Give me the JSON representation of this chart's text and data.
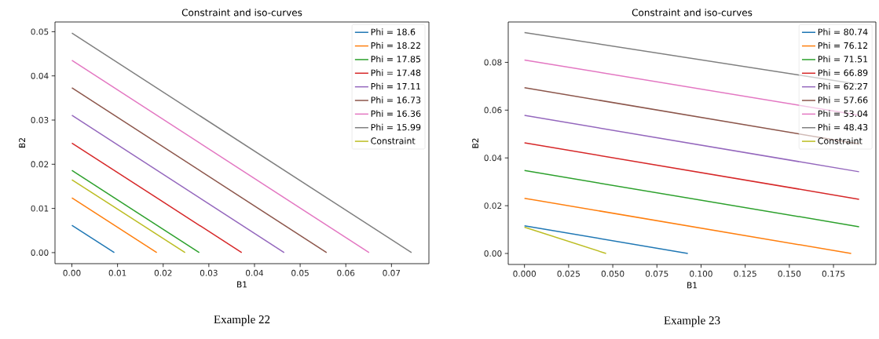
{
  "chart_data": [
    {
      "type": "line",
      "title": "Constraint and iso-curves",
      "xlabel": "B1",
      "ylabel": "B2",
      "legend": "top right",
      "annotations": [
        "Example 22"
      ],
      "xlim": [
        -0.0037,
        0.0782
      ],
      "ylim": [
        -0.0025,
        0.0522
      ],
      "xticks": [
        {
          "value": 0,
          "label": "0.00"
        },
        {
          "value": 0.01,
          "label": "0.01"
        },
        {
          "value": 0.02,
          "label": "0.02"
        },
        {
          "value": 0.03,
          "label": "0.03"
        },
        {
          "value": 0.04,
          "label": "0.04"
        },
        {
          "value": 0.05,
          "label": "0.05"
        },
        {
          "value": 0.06,
          "label": "0.06"
        },
        {
          "value": 0.07,
          "label": "0.07"
        }
      ],
      "yticks": [
        {
          "value": 0,
          "label": "0.00"
        },
        {
          "value": 0.01,
          "label": "0.01"
        },
        {
          "value": 0.02,
          "label": "0.02"
        },
        {
          "value": 0.03,
          "label": "0.03"
        },
        {
          "value": 0.04,
          "label": "0.04"
        },
        {
          "value": 0.05,
          "label": "0.05"
        }
      ],
      "series": [
        {
          "name": "Phi = 18.6",
          "color": "#1f77b4",
          "x": [
            0,
            0.0093
          ],
          "values": [
            0.0062,
            0
          ]
        },
        {
          "name": "Phi = 18.22",
          "color": "#ff7f0e",
          "x": [
            0,
            0.0186
          ],
          "values": [
            0.0124,
            0
          ]
        },
        {
          "name": "Phi = 17.85",
          "color": "#2ca02c",
          "x": [
            0,
            0.0279
          ],
          "values": [
            0.0186,
            0
          ]
        },
        {
          "name": "Phi = 17.48",
          "color": "#d62728",
          "x": [
            0,
            0.0372
          ],
          "values": [
            0.0248,
            0
          ]
        },
        {
          "name": "Phi = 17.11",
          "color": "#9467bd",
          "x": [
            0,
            0.0465
          ],
          "values": [
            0.0311,
            0
          ]
        },
        {
          "name": "Phi = 16.73",
          "color": "#8c564b",
          "x": [
            0,
            0.0558
          ],
          "values": [
            0.0373,
            0
          ]
        },
        {
          "name": "Phi = 16.36",
          "color": "#e377c2",
          "x": [
            0,
            0.0651
          ],
          "values": [
            0.0435,
            0
          ]
        },
        {
          "name": "Phi = 15.99",
          "color": "#7f7f7f",
          "x": [
            0,
            0.0744
          ],
          "values": [
            0.0497,
            0
          ]
        },
        {
          "name": "Constraint",
          "color": "#bcbd22",
          "x": [
            0,
            0.0248
          ],
          "values": [
            0.0165,
            0
          ]
        }
      ]
    },
    {
      "type": "line",
      "title": "Constraint and iso-curves",
      "xlabel": "B1",
      "ylabel": "B2",
      "legend": "top right",
      "annotations": [
        "Example 23"
      ],
      "xlim": [
        -0.0092,
        0.199
      ],
      "ylim": [
        -0.0046,
        0.0969
      ],
      "xticks": [
        {
          "value": 0,
          "label": "0.000"
        },
        {
          "value": 0.025,
          "label": "0.025"
        },
        {
          "value": 0.05,
          "label": "0.050"
        },
        {
          "value": 0.075,
          "label": "0.075"
        },
        {
          "value": 0.1,
          "label": "0.100"
        },
        {
          "value": 0.125,
          "label": "0.125"
        },
        {
          "value": 0.15,
          "label": "0.150"
        },
        {
          "value": 0.175,
          "label": "0.175"
        }
      ],
      "yticks": [
        {
          "value": 0,
          "label": "0.00"
        },
        {
          "value": 0.02,
          "label": "0.02"
        },
        {
          "value": 0.04,
          "label": "0.04"
        },
        {
          "value": 0.06,
          "label": "0.06"
        },
        {
          "value": 0.08,
          "label": "0.08"
        }
      ],
      "series": [
        {
          "name": "Phi = 80.74",
          "color": "#1f77b4",
          "x": [
            0,
            0.0925
          ],
          "values": [
            0.0116,
            0
          ]
        },
        {
          "name": "Phi = 76.12",
          "color": "#ff7f0e",
          "x": [
            0,
            0.185
          ],
          "values": [
            0.0231,
            0
          ]
        },
        {
          "name": "Phi = 71.51",
          "color": "#2ca02c",
          "x": [
            0,
            0.1895
          ],
          "values": [
            0.0347,
            0.0112
          ]
        },
        {
          "name": "Phi = 66.89",
          "color": "#d62728",
          "x": [
            0,
            0.1895
          ],
          "values": [
            0.0463,
            0.0227
          ]
        },
        {
          "name": "Phi = 62.27",
          "color": "#9467bd",
          "x": [
            0,
            0.1895
          ],
          "values": [
            0.0578,
            0.0342
          ]
        },
        {
          "name": "Phi = 57.66",
          "color": "#8c564b",
          "x": [
            0,
            0.1895
          ],
          "values": [
            0.0694,
            0.0458
          ]
        },
        {
          "name": "Phi = 53.04",
          "color": "#e377c2",
          "x": [
            0,
            0.1895
          ],
          "values": [
            0.081,
            0.0579
          ]
        },
        {
          "name": "Phi = 48.43",
          "color": "#7f7f7f",
          "x": [
            0,
            0.1895
          ],
          "values": [
            0.0925,
            0.0708
          ]
        },
        {
          "name": "Constraint",
          "color": "#bcbd22",
          "x": [
            0,
            0.0462
          ],
          "values": [
            0.011,
            0
          ]
        }
      ]
    }
  ]
}
